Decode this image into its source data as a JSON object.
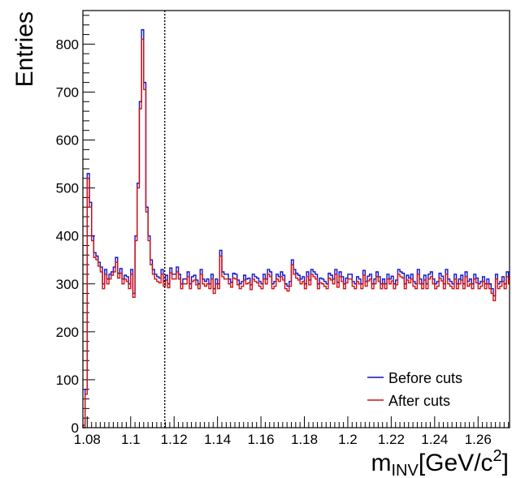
{
  "chart_data": {
    "type": "step",
    "xlabel_main": "m",
    "xlabel_sub": "INV",
    "xlabel_unit": "[GeV/c",
    "xlabel_sup": "2",
    "xlabel_close": "]",
    "ylabel": "Entries",
    "xlim": [
      1.078,
      1.2745
    ],
    "ylim": [
      0,
      870
    ],
    "x_ticks": [
      1.08,
      1.1,
      1.12,
      1.14,
      1.16,
      1.18,
      1.2,
      1.22,
      1.24,
      1.26
    ],
    "x_tick_labels": [
      "1.08",
      "1.1",
      "1.12",
      "1.14",
      "1.16",
      "1.18",
      "1.2",
      "1.22",
      "1.24",
      "1.26"
    ],
    "y_ticks": [
      0,
      100,
      200,
      300,
      400,
      500,
      600,
      700,
      800
    ],
    "y_tick_labels": [
      "0",
      "100",
      "200",
      "300",
      "400",
      "500",
      "600",
      "700",
      "800"
    ],
    "vertical_line_x": 1.1157,
    "legend_position": "bottom-right",
    "colors": {
      "before": "#1010c8",
      "after": "#d01010",
      "vline": "#000000"
    },
    "series": [
      {
        "name": "Before cuts",
        "x_start": 1.078,
        "bin_width": 0.001,
        "values": [
          5,
          80,
          530,
          470,
          400,
          365,
          358,
          345,
          335,
          300,
          330,
          310,
          320,
          325,
          335,
          355,
          322,
          332,
          310,
          318,
          315,
          300,
          330,
          280,
          400,
          510,
          680,
          830,
          720,
          460,
          400,
          350,
          330,
          320,
          315,
          312,
          330,
          305,
          318,
          300,
          333,
          320,
          320,
          335,
          320,
          300,
          310,
          310,
          325,
          300,
          315,
          318,
          308,
          300,
          330,
          310,
          305,
          310,
          300,
          320,
          290,
          310,
          300,
          370,
          325,
          320,
          320,
          310,
          303,
          322,
          320,
          308,
          300,
          305,
          318,
          310,
          312,
          298,
          320,
          315,
          312,
          305,
          300,
          320,
          310,
          330,
          325,
          300,
          305,
          320,
          315,
          325,
          318,
          300,
          295,
          305,
          350,
          330,
          322,
          318,
          310,
          315,
          300,
          325,
          308,
          330,
          325,
          320,
          300,
          312,
          310,
          305,
          300,
          322,
          318,
          310,
          330,
          303,
          325,
          315,
          300,
          312,
          320,
          320,
          305,
          300,
          315,
          310,
          300,
          328,
          305,
          316,
          320,
          300,
          310,
          325,
          315,
          300,
          310,
          300,
          320,
          310,
          316,
          300,
          308,
          330,
          325,
          322,
          300,
          318,
          312,
          320,
          305,
          300,
          330,
          310,
          300,
          318,
          300,
          320,
          325,
          310,
          300,
          305,
          322,
          316,
          300,
          330,
          310,
          305,
          300,
          320,
          300,
          310,
          318,
          300,
          325,
          305,
          310,
          300,
          320,
          312,
          300,
          305,
          315,
          300,
          310,
          300,
          290,
          275,
          320,
          300,
          305,
          315,
          300,
          325,
          310
        ]
      },
      {
        "name": "After cuts",
        "x_start": 1.078,
        "bin_width": 0.001,
        "values": [
          0,
          70,
          520,
          460,
          390,
          355,
          350,
          337,
          325,
          290,
          320,
          300,
          310,
          318,
          325,
          345,
          312,
          322,
          300,
          310,
          305,
          290,
          320,
          272,
          390,
          500,
          665,
          810,
          705,
          450,
          390,
          340,
          320,
          310,
          305,
          302,
          320,
          295,
          308,
          292,
          323,
          310,
          310,
          325,
          310,
          290,
          300,
          300,
          315,
          290,
          305,
          308,
          298,
          290,
          320,
          300,
          295,
          300,
          290,
          310,
          280,
          300,
          290,
          358,
          315,
          310,
          310,
          300,
          293,
          312,
          310,
          298,
          290,
          295,
          308,
          300,
          302,
          288,
          310,
          305,
          302,
          295,
          290,
          310,
          300,
          320,
          315,
          290,
          295,
          310,
          305,
          315,
          308,
          290,
          285,
          295,
          340,
          320,
          312,
          308,
          300,
          305,
          290,
          315,
          298,
          320,
          315,
          310,
          290,
          302,
          300,
          295,
          290,
          312,
          308,
          300,
          320,
          293,
          315,
          305,
          290,
          302,
          310,
          310,
          295,
          290,
          305,
          300,
          290,
          318,
          295,
          306,
          310,
          290,
          300,
          315,
          305,
          290,
          300,
          290,
          310,
          300,
          306,
          290,
          298,
          320,
          315,
          312,
          290,
          308,
          302,
          310,
          295,
          290,
          320,
          300,
          290,
          308,
          290,
          310,
          315,
          300,
          290,
          295,
          312,
          306,
          290,
          320,
          300,
          295,
          290,
          310,
          290,
          300,
          308,
          290,
          315,
          295,
          300,
          290,
          310,
          302,
          290,
          295,
          305,
          290,
          300,
          290,
          280,
          265,
          310,
          290,
          295,
          305,
          290,
          315,
          300
        ]
      }
    ]
  }
}
